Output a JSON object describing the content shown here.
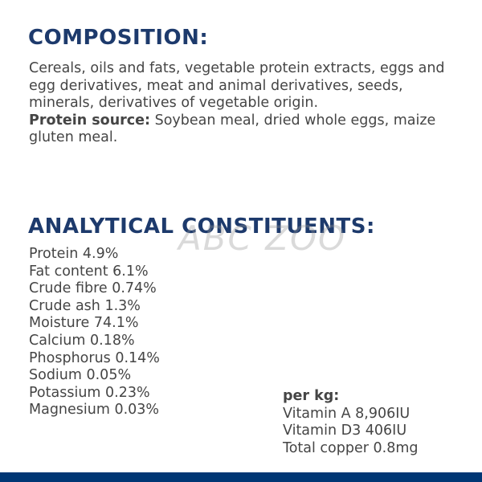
{
  "composition": {
    "heading": "COMPOSITION:",
    "text": "Cereals, oils and fats, vegetable protein extracts, eggs and egg derivatives, meat and animal derivatives, seeds, minerals, derivatives of vegetable origin.",
    "protein_label": "Protein source:",
    "protein_text": " Soybean meal, dried whole eggs, maize gluten meal."
  },
  "analytical": {
    "heading": "ANALYTICAL CONSTITUENTS:",
    "items": [
      "Protein 4.9%",
      "Fat content 6.1%",
      "Crude fibre 0.74%",
      "Crude ash 1.3%",
      "Moisture 74.1%",
      "Calcium 0.18%",
      "Phosphorus 0.14%",
      "Sodium 0.05%",
      "Potassium 0.23%",
      "Magnesium 0.03%"
    ]
  },
  "per_kg": {
    "label": "per kg:",
    "items": [
      "Vitamin A 8,906IU",
      "Vitamin D3 406IU",
      "Total copper 0.8mg"
    ]
  },
  "watermark": "ABC ZOO",
  "colors": {
    "heading": "#1d3a6c",
    "bar": "#003674",
    "text": "#454545"
  }
}
